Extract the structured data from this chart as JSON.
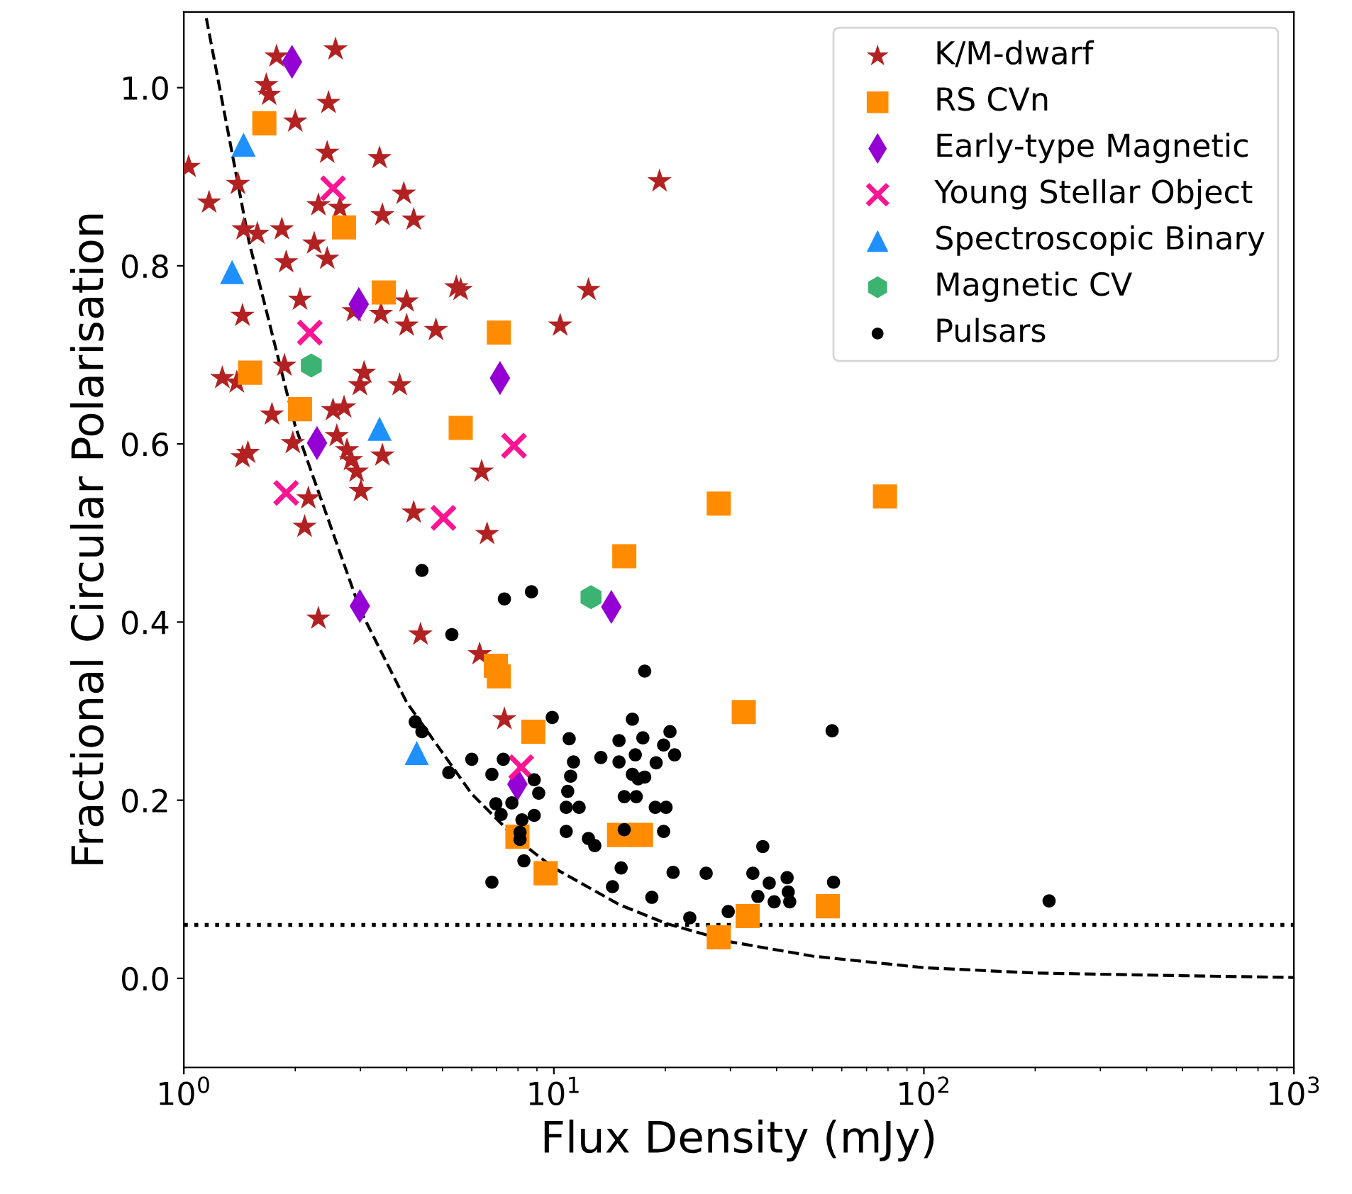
{
  "chart_data": {
    "type": "scatter",
    "xlabel": "Flux Density (mJy)",
    "ylabel": "Fractional Circular Polarisation",
    "log": "x",
    "xlim": [
      1,
      1000
    ],
    "ylim": [
      -0.1,
      1.085
    ],
    "xticks": [
      {
        "value": 1,
        "label": "10$^{0}$"
      },
      {
        "value": 10,
        "label": "10$^{1}$"
      },
      {
        "value": 100,
        "label": "10$^{2}$"
      },
      {
        "value": 1000,
        "label": "10$^{3}$"
      }
    ],
    "yticks": [
      {
        "value": 0,
        "label": "0.0"
      },
      {
        "value": 0.2,
        "label": "0.2"
      },
      {
        "value": 0.4,
        "label": "0.4"
      },
      {
        "value": 0.6,
        "label": "0.6"
      },
      {
        "value": 0.8,
        "label": "0.8"
      },
      {
        "value": 1,
        "label": "1.0"
      }
    ],
    "grid": false,
    "legend": "top right",
    "ref_lines": [
      {
        "axis": "y",
        "value": 0.06,
        "line_style": "dotted",
        "color": "#000000"
      }
    ],
    "series": [
      {
        "name": "K/M-dwarf",
        "color": "#b22222",
        "marker": "star",
        "x": [
          1.03,
          1.78,
          1.67,
          1.7,
          2.57,
          2.46,
          2.0,
          2.44,
          3.38,
          1.4,
          1.17,
          2.31,
          2.64,
          3.93,
          3.44,
          4.18,
          1.45,
          1.58,
          1.84,
          2.25,
          2.44,
          1.89,
          5.45,
          2.06,
          4.0,
          2.88,
          3.41,
          1.44,
          4.0,
          4.8,
          1.27,
          1.39,
          1.87,
          3.07,
          2.99,
          3.83,
          1.73,
          2.53,
          2.71,
          3.44,
          1.44,
          1.49,
          1.97,
          2.59,
          2.76,
          2.83,
          2.93,
          3.01,
          2.17,
          5.6,
          12.4,
          10.4,
          6.38,
          6.6,
          4.36,
          6.3,
          7.35,
          19.3,
          2.12,
          4.18,
          2.31
        ],
        "values": [
          0.911,
          1.035,
          1.003,
          0.992,
          1.043,
          0.983,
          0.962,
          0.927,
          0.921,
          0.892,
          0.871,
          0.868,
          0.865,
          0.881,
          0.857,
          0.852,
          0.841,
          0.836,
          0.841,
          0.825,
          0.808,
          0.804,
          0.776,
          0.762,
          0.76,
          0.749,
          0.746,
          0.744,
          0.733,
          0.728,
          0.674,
          0.669,
          0.688,
          0.68,
          0.666,
          0.666,
          0.633,
          0.638,
          0.641,
          0.587,
          0.585,
          0.59,
          0.601,
          0.609,
          0.593,
          0.582,
          0.569,
          0.547,
          0.539,
          0.773,
          0.773,
          0.733,
          0.569,
          0.499,
          0.386,
          0.364,
          0.291,
          0.895,
          0.507,
          0.523,
          0.404
        ]
      },
      {
        "name": "RS CVn",
        "color": "#ff8c00",
        "marker": "square",
        "x": [
          1.65,
          2.71,
          3.47,
          1.51,
          2.06,
          7.1,
          5.6,
          15.5,
          6.97,
          7.1,
          8.8,
          7.97,
          9.5,
          15.0,
          17.2,
          27.9,
          78.5,
          32.6,
          27.9,
          33.4,
          55.0
        ],
        "values": [
          0.96,
          0.843,
          0.77,
          0.68,
          0.639,
          0.725,
          0.618,
          0.474,
          0.351,
          0.339,
          0.277,
          0.159,
          0.118,
          0.161,
          0.161,
          0.533,
          0.541,
          0.299,
          0.046,
          0.07,
          0.081
        ]
      },
      {
        "name": "Early-type Magnetic",
        "color": "#9400d3",
        "marker": "diamond",
        "x": [
          1.96,
          2.97,
          2.29,
          7.15,
          14.3,
          7.97,
          2.99
        ],
        "values": [
          1.029,
          0.757,
          0.601,
          0.674,
          0.417,
          0.218,
          0.418
        ]
      },
      {
        "name": "Young Stellar Object",
        "color": "#ff1493",
        "marker": "cross",
        "x": [
          2.53,
          2.19,
          1.89,
          7.8,
          5.03,
          8.16
        ],
        "values": [
          0.887,
          0.725,
          0.545,
          0.598,
          0.517,
          0.237
        ]
      },
      {
        "name": "Spectroscopic Binary",
        "color": "#1e90ff",
        "marker": "triangle",
        "x": [
          1.45,
          1.35,
          3.38,
          4.26
        ],
        "values": [
          0.936,
          0.793,
          0.617,
          0.253
        ]
      },
      {
        "name": "Magnetic CV",
        "color": "#3cb371",
        "x": [
          2.21,
          12.6
        ],
        "values": [
          0.688,
          0.428
        ]
      },
      {
        "name": "Pulsars",
        "color": "#000000",
        "marker": "circle",
        "x": [
          4.4,
          5.3,
          4.22,
          4.4,
          5.2,
          7.35,
          8.7,
          17.6,
          9.9,
          16.3,
          11.0,
          15.0,
          17.4,
          20.6,
          19.8,
          21.2,
          6.0,
          7.3,
          11.3,
          13.4,
          15.0,
          16.6,
          18.9,
          6.8,
          8.85,
          11.1,
          16.3,
          17.6,
          9.1,
          10.9,
          15.5,
          16.7,
          6.97,
          7.7,
          10.8,
          11.7,
          18.8,
          20.1,
          7.2,
          8.85,
          8.2,
          10.8,
          15.5,
          19.8,
          12.4,
          12.9,
          8.1,
          8.1,
          8.3,
          6.8,
          15.2,
          14.4,
          18.4,
          21.0,
          25.8,
          23.3,
          56.5,
          36.7,
          34.5,
          38.2,
          42.7,
          35.6,
          39.4,
          43.0,
          43.4,
          57.0,
          29.6,
          218,
          16.9
        ],
        "values": [
          0.458,
          0.386,
          0.288,
          0.277,
          0.231,
          0.426,
          0.434,
          0.345,
          0.293,
          0.291,
          0.269,
          0.267,
          0.27,
          0.277,
          0.262,
          0.251,
          0.246,
          0.246,
          0.243,
          0.248,
          0.243,
          0.251,
          0.242,
          0.229,
          0.223,
          0.227,
          0.229,
          0.226,
          0.208,
          0.21,
          0.204,
          0.204,
          0.196,
          0.197,
          0.192,
          0.192,
          0.192,
          0.192,
          0.184,
          0.183,
          0.178,
          0.165,
          0.167,
          0.165,
          0.157,
          0.149,
          0.164,
          0.156,
          0.132,
          0.108,
          0.124,
          0.103,
          0.091,
          0.119,
          0.118,
          0.068,
          0.278,
          0.148,
          0.118,
          0.107,
          0.113,
          0.092,
          0.086,
          0.097,
          0.086,
          0.108,
          0.075,
          0.087,
          0.224
        ]
      },
      {
        "type": "line",
        "color": "#000000",
        "line_style": "dashed",
        "marker": "none",
        "x": [
          1.15,
          1.5,
          2,
          3,
          4,
          6,
          8,
          10,
          15,
          20,
          30,
          50,
          100,
          200,
          500,
          1000
        ],
        "values": [
          1.078,
          0.827,
          0.62,
          0.413,
          0.31,
          0.207,
          0.155,
          0.124,
          0.083,
          0.062,
          0.041,
          0.025,
          0.012,
          0.006,
          0.003,
          0.001
        ]
      }
    ]
  }
}
